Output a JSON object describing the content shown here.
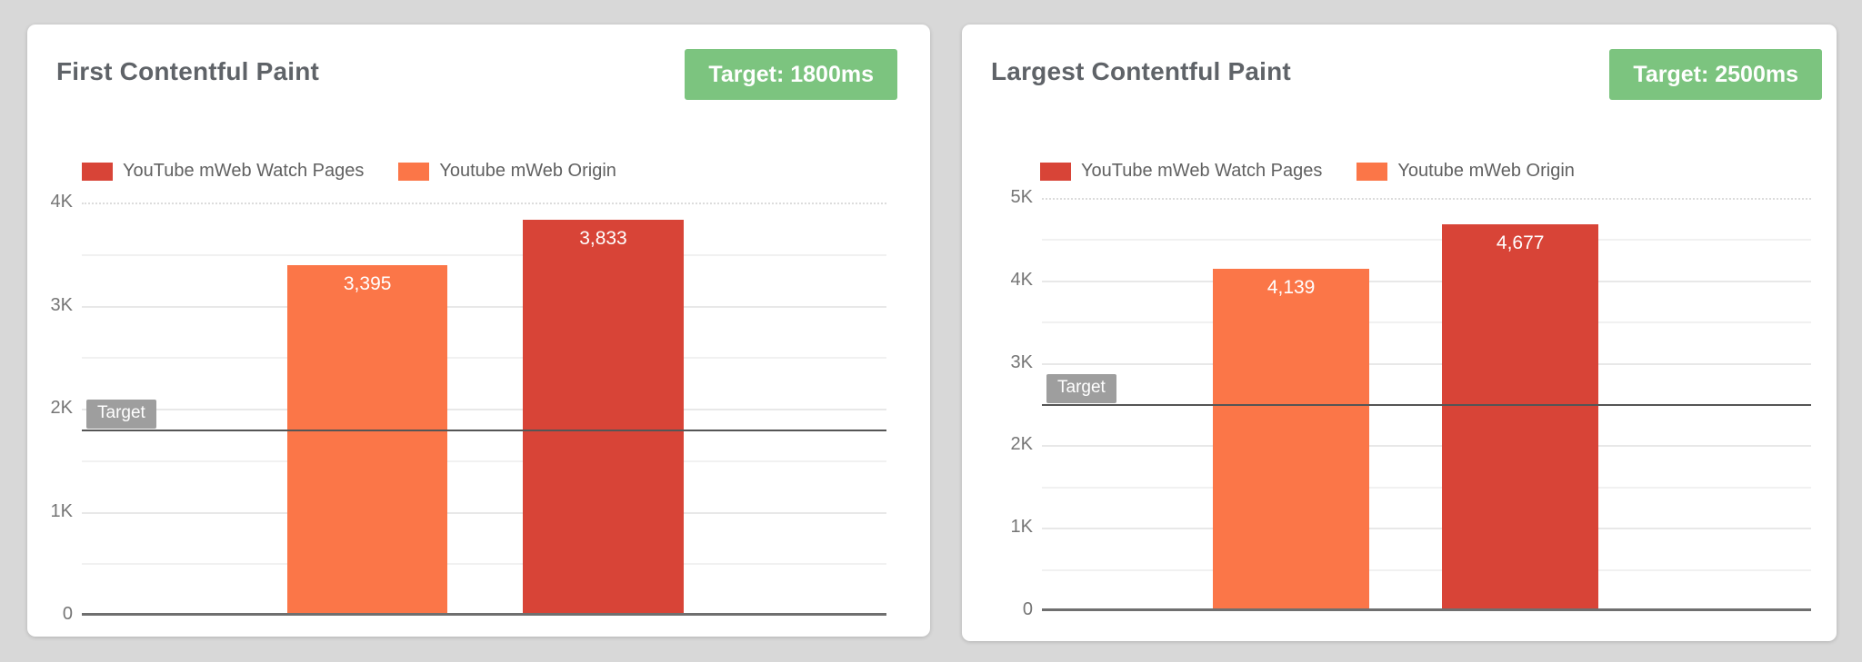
{
  "page": {
    "background": "#d8d8d8",
    "card_background": "#ffffff"
  },
  "colors": {
    "series_red": "#d84437",
    "series_orange": "#fb7648",
    "green_badge": "#7cc47f",
    "target_gray": "#9e9e9e",
    "title_text": "#5f6368",
    "axis_text": "#757575"
  },
  "cards": [
    {
      "title": "First Contentful Paint",
      "target_badge": "Target: 1800ms"
    },
    {
      "title": "Largest Contentful Paint",
      "target_badge": "Target: 2500ms"
    }
  ],
  "chart_data": [
    {
      "type": "bar",
      "title": "First Contentful Paint",
      "unit": "ms",
      "legend_position": "top",
      "grid": true,
      "series": [
        {
          "name": "YouTube mWeb Watch Pages",
          "color": "#d84437",
          "value": 3833,
          "label": "3,833"
        },
        {
          "name": "Youtube mWeb Origin",
          "color": "#fb7648",
          "value": 3395,
          "label": "3,395"
        }
      ],
      "bar_order": [
        1,
        0
      ],
      "ylim": [
        0,
        4000
      ],
      "ytick_step": 1000,
      "ytick_labels": [
        "0",
        "1K",
        "2K",
        "3K",
        "4K"
      ],
      "gridline_step": 500,
      "target": {
        "value": 1800,
        "label": "Target"
      }
    },
    {
      "type": "bar",
      "title": "Largest Contentful Paint",
      "unit": "ms",
      "legend_position": "top",
      "grid": true,
      "series": [
        {
          "name": "YouTube mWeb Watch Pages",
          "color": "#d84437",
          "value": 4677,
          "label": "4,677"
        },
        {
          "name": "Youtube mWeb Origin",
          "color": "#fb7648",
          "value": 4139,
          "label": "4,139"
        }
      ],
      "bar_order": [
        1,
        0
      ],
      "ylim": [
        0,
        5000
      ],
      "ytick_step": 1000,
      "ytick_labels": [
        "0",
        "1K",
        "2K",
        "3K",
        "4K",
        "5K"
      ],
      "gridline_step": 500,
      "target": {
        "value": 2500,
        "label": "Target"
      }
    }
  ]
}
